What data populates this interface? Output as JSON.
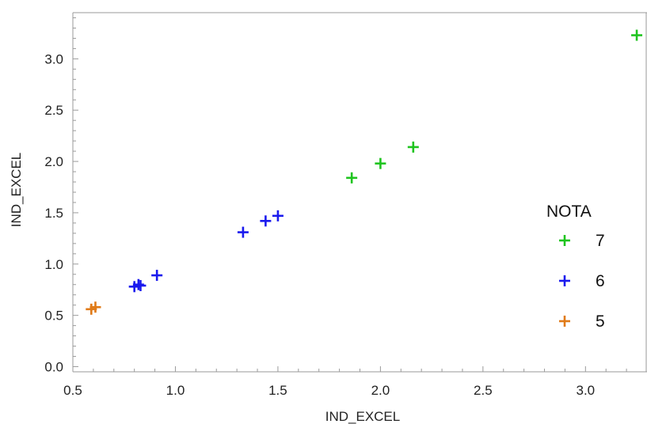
{
  "chart_data": {
    "type": "scatter",
    "xlabel": "IND_EXCEL",
    "ylabel": "IND_EXCEL",
    "xlim": [
      0.5,
      3.3
    ],
    "ylim": [
      -0.05,
      3.45
    ],
    "x_ticks": [
      "0.5",
      "1.0",
      "1.5",
      "2.0",
      "2.5",
      "3.0"
    ],
    "y_ticks": [
      "0.0",
      "0.5",
      "1.0",
      "1.5",
      "2.0",
      "2.5",
      "3.0"
    ],
    "marker": "plus",
    "grid": false,
    "legend": {
      "title": "NOTA",
      "position": "right"
    },
    "series": [
      {
        "name": "7",
        "color": "#1fc41f",
        "points": [
          {
            "x": 1.86,
            "y": 1.84
          },
          {
            "x": 2.0,
            "y": 1.98
          },
          {
            "x": 2.16,
            "y": 2.14
          },
          {
            "x": 3.25,
            "y": 3.23
          }
        ]
      },
      {
        "name": "6",
        "color": "#1a1aee",
        "points": [
          {
            "x": 0.8,
            "y": 0.78
          },
          {
            "x": 0.82,
            "y": 0.8
          },
          {
            "x": 0.83,
            "y": 0.79
          },
          {
            "x": 0.91,
            "y": 0.89
          },
          {
            "x": 1.33,
            "y": 1.31
          },
          {
            "x": 1.44,
            "y": 1.42
          },
          {
            "x": 1.5,
            "y": 1.47
          }
        ]
      },
      {
        "name": "5",
        "color": "#e07a17",
        "points": [
          {
            "x": 0.59,
            "y": 0.56
          },
          {
            "x": 0.61,
            "y": 0.58
          }
        ]
      }
    ]
  }
}
